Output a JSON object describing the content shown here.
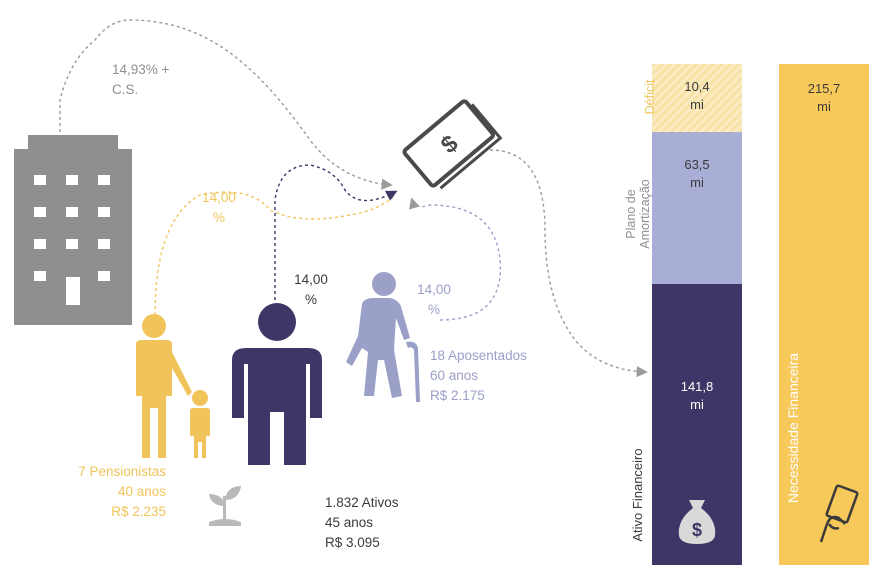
{
  "flows": {
    "employer_rate_line1": "14,93% +",
    "employer_rate_line2": "C.S.",
    "pension_rate_line1": "14,00",
    "pension_rate_line2": "%",
    "active_rate_line1": "14,00",
    "active_rate_line2": "%",
    "retired_rate_line1": "14,00",
    "retired_rate_line2": "%"
  },
  "groups": {
    "pensioners": {
      "count": "7 Pensionistas",
      "age": "40 anos",
      "value": "R$ 2.235"
    },
    "actives": {
      "count": "1.832 Ativos",
      "age": "45 anos",
      "value": "R$ 3.095"
    },
    "retired": {
      "count": "18 Aposentados",
      "age": "60 anos",
      "value": "R$ 2.175"
    }
  },
  "bars": {
    "deficit": {
      "label": "Déficit",
      "value_line1": "10,4",
      "value_line2": "mi"
    },
    "amortization": {
      "label_line1": "Plano de",
      "label_line2": "Amortização",
      "value_line1": "63,5",
      "value_line2": "mi"
    },
    "financial_asset": {
      "label": "Ativo Financeiro",
      "value_line1": "141,8",
      "value_line2": "mi"
    },
    "financial_need": {
      "label": "Necessidade Financeira",
      "value_line1": "215,7",
      "value_line2": "mi"
    }
  },
  "icons": [
    "building-icon",
    "money-bill-icon",
    "pensioner-family-icon",
    "active-person-icon",
    "retired-elder-icon",
    "plant-icon",
    "money-bag-icon",
    "hand-money-icon"
  ],
  "colors": {
    "gray": "#8f8f8f",
    "yellow": "#f0c45a",
    "yellow_light": "#f7e2a8",
    "lavender": "#a9aed6",
    "dark_purple": "#3f3566",
    "elder": "#9aa0c8"
  }
}
